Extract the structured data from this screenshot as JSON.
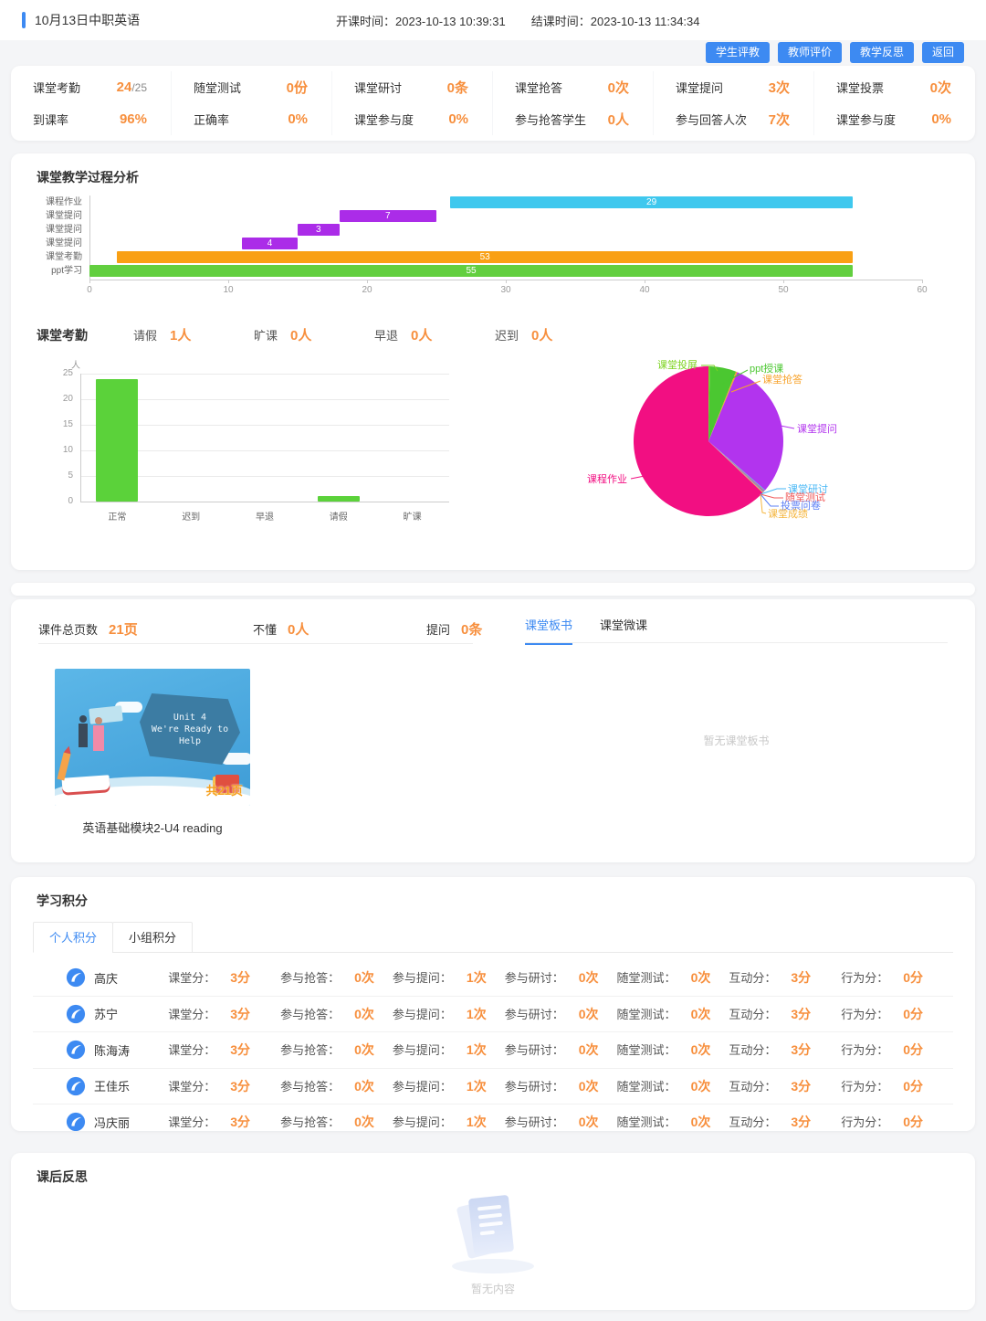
{
  "colors": {
    "accent_blue": "#3d8af2",
    "value_orange": "#f78f3d"
  },
  "header": {
    "title": "10月13日中职英语",
    "start_label": "开课时间：",
    "start_time": "2023-10-13 10:39:31",
    "end_label": "结课时间：",
    "end_time": "2023-10-13 11:34:34",
    "buttons": [
      "学生评教",
      "教师评价",
      "教学反思",
      "返回"
    ]
  },
  "stats": {
    "rows": [
      [
        {
          "label": "课堂考勤",
          "value": "24",
          "suffix": "/25"
        },
        {
          "label": "随堂测试",
          "value": "0份"
        },
        {
          "label": "课堂研讨",
          "value": "0条"
        },
        {
          "label": "课堂抢答",
          "value": "0次"
        },
        {
          "label": "课堂提问",
          "value": "3次"
        },
        {
          "label": "课堂投票",
          "value": "0次"
        }
      ],
      [
        {
          "label": "到课率",
          "value": "96%"
        },
        {
          "label": "正确率",
          "value": "0%"
        },
        {
          "label": "课堂参与度",
          "value": "0%"
        },
        {
          "label": "参与抢答学生",
          "value": "0人"
        },
        {
          "label": "参与回答人次",
          "value": "7次"
        },
        {
          "label": "课堂参与度",
          "value": "0%"
        }
      ]
    ]
  },
  "process": {
    "title": "课堂教学过程分析"
  },
  "attendance": {
    "title": "课堂考勤",
    "stats": [
      {
        "label": "请假",
        "value": "1人"
      },
      {
        "label": "旷课",
        "value": "0人"
      },
      {
        "label": "早退",
        "value": "0人"
      },
      {
        "label": "迟到",
        "value": "0人"
      }
    ]
  },
  "chart_data": [
    {
      "id": "process_gantt",
      "type": "bar",
      "orientation": "horizontal",
      "title": "课堂教学过程分析",
      "categories": [
        "课程作业",
        "课堂提问",
        "课堂提问",
        "课堂提问",
        "课堂考勤",
        "ppt学习"
      ],
      "bars": [
        {
          "start": 26,
          "length": 29
        },
        {
          "start": 18,
          "length": 7
        },
        {
          "start": 15,
          "length": 3
        },
        {
          "start": 11,
          "length": 4
        },
        {
          "start": 2,
          "length": 53
        },
        {
          "start": 0,
          "length": 55
        }
      ],
      "colors": [
        "#3fc8ee",
        "#ab2ce8",
        "#ab2ce8",
        "#ab2ce8",
        "#f9a014",
        "#62cf3f"
      ],
      "xlim": [
        0,
        60
      ],
      "xticks": [
        0,
        10,
        20,
        30,
        40,
        50,
        60
      ],
      "grid": false
    },
    {
      "id": "attendance_bar",
      "type": "bar",
      "categories": [
        "正常",
        "迟到",
        "早退",
        "请假",
        "旷课"
      ],
      "values": [
        24,
        0,
        0,
        1,
        0
      ],
      "bar_color": "#5bd23a",
      "ylabel": "人",
      "ylim": [
        0,
        25
      ],
      "yticks": [
        0,
        5,
        10,
        15,
        20,
        25
      ],
      "grid": true,
      "legend": "none"
    },
    {
      "id": "activity_pie",
      "type": "pie",
      "value_unit": "estimated_percent",
      "slices": [
        {
          "label": "课堂投屏",
          "value": 0.3,
          "color": "#7dd321"
        },
        {
          "label": "ppt授课",
          "value": 5.7,
          "color": "#4bc731"
        },
        {
          "label": "课堂抢答",
          "value": 0.3,
          "color": "#f7a32c"
        },
        {
          "label": "课堂提问",
          "value": 30,
          "color": "#b234ee"
        },
        {
          "label": "课堂研讨",
          "value": 0.2,
          "color": "#45b6f5"
        },
        {
          "label": "随堂测试",
          "value": 0.2,
          "color": "#f05a5a"
        },
        {
          "label": "投票问卷",
          "value": 0.2,
          "color": "#5b7ff5"
        },
        {
          "label": "课堂成绩",
          "value": 0.2,
          "color": "#f5b53d"
        },
        {
          "label": "课程作业",
          "value": 62.9,
          "color": "#f20f82"
        }
      ],
      "legend": "callout-labels"
    }
  ],
  "courseware": {
    "stats": [
      {
        "label": "课件总页数",
        "value": "21页"
      },
      {
        "label": "不懂",
        "value": "0人"
      },
      {
        "label": "提问",
        "value": "0条"
      }
    ],
    "tabs": [
      {
        "label": "课堂板书"
      },
      {
        "label": "课堂微课"
      }
    ],
    "empty_text": "暂无课堂板书",
    "slide": {
      "line1": "Unit 4",
      "line2": "We're Ready to",
      "line3": "Help",
      "badge": "共21页",
      "caption": "英语基础模块2-U4 reading"
    }
  },
  "points": {
    "title": "学习积分",
    "tabs": [
      {
        "label": "个人积分"
      },
      {
        "label": "小组积分"
      }
    ],
    "metric_labels": [
      "课堂分：",
      "参与抢答：",
      "参与提问：",
      "参与研讨：",
      "随堂测试：",
      "互动分：",
      "行为分："
    ],
    "rows": [
      {
        "name": "高庆",
        "values": [
          "3分",
          "0次",
          "1次",
          "0次",
          "0次",
          "3分",
          "0分"
        ]
      },
      {
        "name": "苏宁",
        "values": [
          "3分",
          "0次",
          "1次",
          "0次",
          "0次",
          "3分",
          "0分"
        ]
      },
      {
        "name": "陈海涛",
        "values": [
          "3分",
          "0次",
          "1次",
          "0次",
          "0次",
          "3分",
          "0分"
        ]
      },
      {
        "name": "王佳乐",
        "values": [
          "3分",
          "0次",
          "1次",
          "0次",
          "0次",
          "3分",
          "0分"
        ]
      },
      {
        "name": "冯庆丽",
        "values": [
          "3分",
          "0次",
          "1次",
          "0次",
          "0次",
          "3分",
          "0分"
        ]
      }
    ]
  },
  "reflection": {
    "title": "课后反思",
    "empty_text": "暂无内容"
  }
}
